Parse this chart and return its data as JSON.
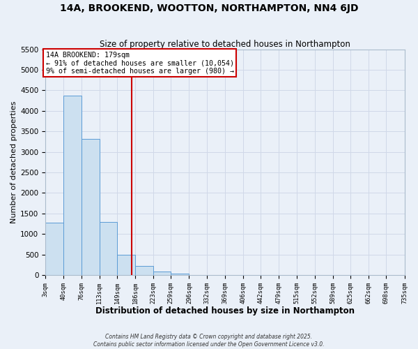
{
  "title": "14A, BROOKEND, WOOTTON, NORTHAMPTON, NN4 6JD",
  "subtitle": "Size of property relative to detached houses in Northampton",
  "xlabel": "Distribution of detached houses by size in Northampton",
  "ylabel": "Number of detached properties",
  "bin_edges": [
    3,
    40,
    76,
    113,
    149,
    186,
    223,
    259,
    296,
    332,
    369,
    406,
    442,
    479,
    515,
    552,
    589,
    625,
    662,
    698,
    735
  ],
  "bin_labels": [
    "3sqm",
    "40sqm",
    "76sqm",
    "113sqm",
    "149sqm",
    "186sqm",
    "223sqm",
    "259sqm",
    "296sqm",
    "332sqm",
    "369sqm",
    "406sqm",
    "442sqm",
    "479sqm",
    "515sqm",
    "552sqm",
    "589sqm",
    "625sqm",
    "662sqm",
    "698sqm",
    "735sqm"
  ],
  "bar_heights": [
    1270,
    4380,
    3320,
    1290,
    500,
    230,
    80,
    30,
    5,
    2,
    1,
    0,
    0,
    0,
    0,
    0,
    0,
    0,
    0,
    0
  ],
  "bar_facecolor": "#cce0f0",
  "bar_edgecolor": "#5b9bd5",
  "vline_x": 179,
  "vline_color": "#cc0000",
  "annotation_title": "14A BROOKEND: 179sqm",
  "annotation_line1": "← 91% of detached houses are smaller (10,054)",
  "annotation_line2": "9% of semi-detached houses are larger (980) →",
  "box_facecolor": "white",
  "box_edgecolor": "#cc0000",
  "ylim": [
    0,
    5500
  ],
  "yticks": [
    0,
    500,
    1000,
    1500,
    2000,
    2500,
    3000,
    3500,
    4000,
    4500,
    5000,
    5500
  ],
  "grid_color": "#d0d8e8",
  "background_color": "#eaf0f8",
  "footer1": "Contains HM Land Registry data © Crown copyright and database right 2025.",
  "footer2": "Contains public sector information licensed under the Open Government Licence v3.0."
}
